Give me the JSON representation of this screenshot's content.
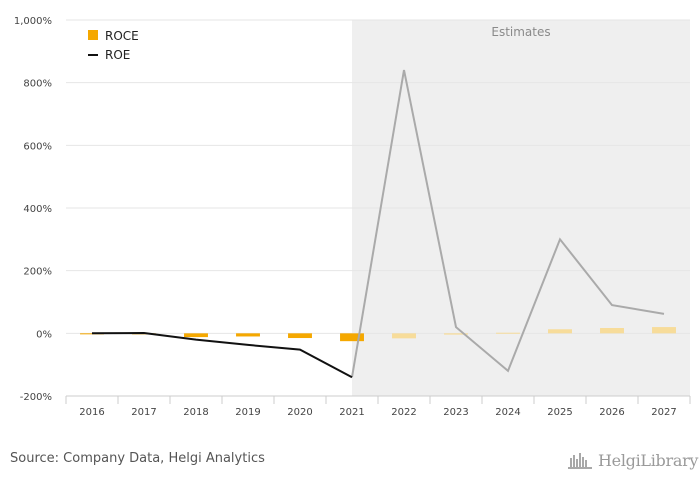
{
  "chart_data": {
    "type": "bar",
    "categories": [
      "2016",
      "2017",
      "2018",
      "2019",
      "2020",
      "2021",
      "2022",
      "2023",
      "2024",
      "2025",
      "2026",
      "2027"
    ],
    "series": [
      {
        "name": "ROCE",
        "kind": "bar",
        "color": "#f5a800",
        "estimate_color": "#f7dc9a",
        "values": [
          0,
          0,
          -12,
          -10,
          -15,
          -25,
          -16,
          -4,
          2,
          13,
          17,
          20
        ]
      },
      {
        "name": "ROE",
        "kind": "line",
        "color": "#111111",
        "estimate_color": "#aaaaaa",
        "values": [
          0,
          1,
          -20,
          -37,
          -52,
          -140,
          840,
          20,
          -120,
          300,
          90,
          62
        ]
      }
    ],
    "ylim": [
      -200,
      1000
    ],
    "yticks": [
      -200,
      0,
      200,
      400,
      600,
      800,
      1000
    ],
    "ytick_labels": [
      "-200%",
      "0%",
      "200%",
      "400%",
      "600%",
      "800%",
      "1,000%"
    ],
    "estimates_from": "2021",
    "estimates_label": "Estimates",
    "legend_position": "top-left",
    "grid": true
  },
  "footer": {
    "source": "Source: Company Data, Helgi Analytics",
    "brand": "HelgiLibrary"
  }
}
